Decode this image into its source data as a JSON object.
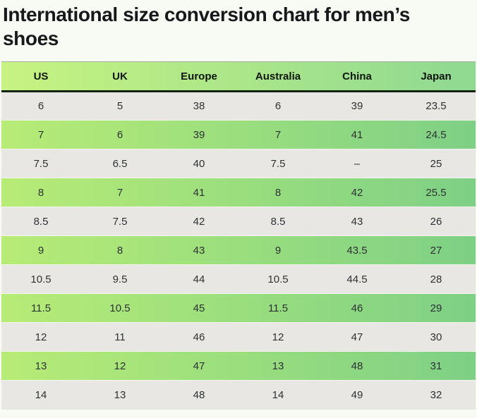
{
  "title": {
    "text": "International size conversion chart for men’s shoes"
  },
  "table": {
    "columns": [
      "US",
      "UK",
      "Europe",
      "Australia",
      "China",
      "Japan"
    ],
    "rows": [
      [
        "6",
        "5",
        "38",
        "6",
        "39",
        "23.5"
      ],
      [
        "7",
        "6",
        "39",
        "7",
        "41",
        "24.5"
      ],
      [
        "7.5",
        "6.5",
        "40",
        "7.5",
        "–",
        "25"
      ],
      [
        "8",
        "7",
        "41",
        "8",
        "42",
        "25.5"
      ],
      [
        "8.5",
        "7.5",
        "42",
        "8.5",
        "43",
        "26"
      ],
      [
        "9",
        "8",
        "43",
        "9",
        "43.5",
        "27"
      ],
      [
        "10.5",
        "9.5",
        "44",
        "10.5",
        "44.5",
        "28"
      ],
      [
        "11.5",
        "10.5",
        "45",
        "11.5",
        "46",
        "29"
      ],
      [
        "12",
        "11",
        "46",
        "12",
        "47",
        "30"
      ],
      [
        "13",
        "12",
        "47",
        "13",
        "48",
        "31"
      ],
      [
        "14",
        "13",
        "48",
        "14",
        "49",
        "32"
      ]
    ],
    "colors": {
      "header_gradient_start": "#c7f381",
      "header_gradient_end": "#8fd992",
      "green_row_gradient_start": "#b7ec76",
      "green_row_gradient_end": "#7ed086",
      "gray_row": "#e8e7e4",
      "header_border": "#12230f"
    }
  }
}
